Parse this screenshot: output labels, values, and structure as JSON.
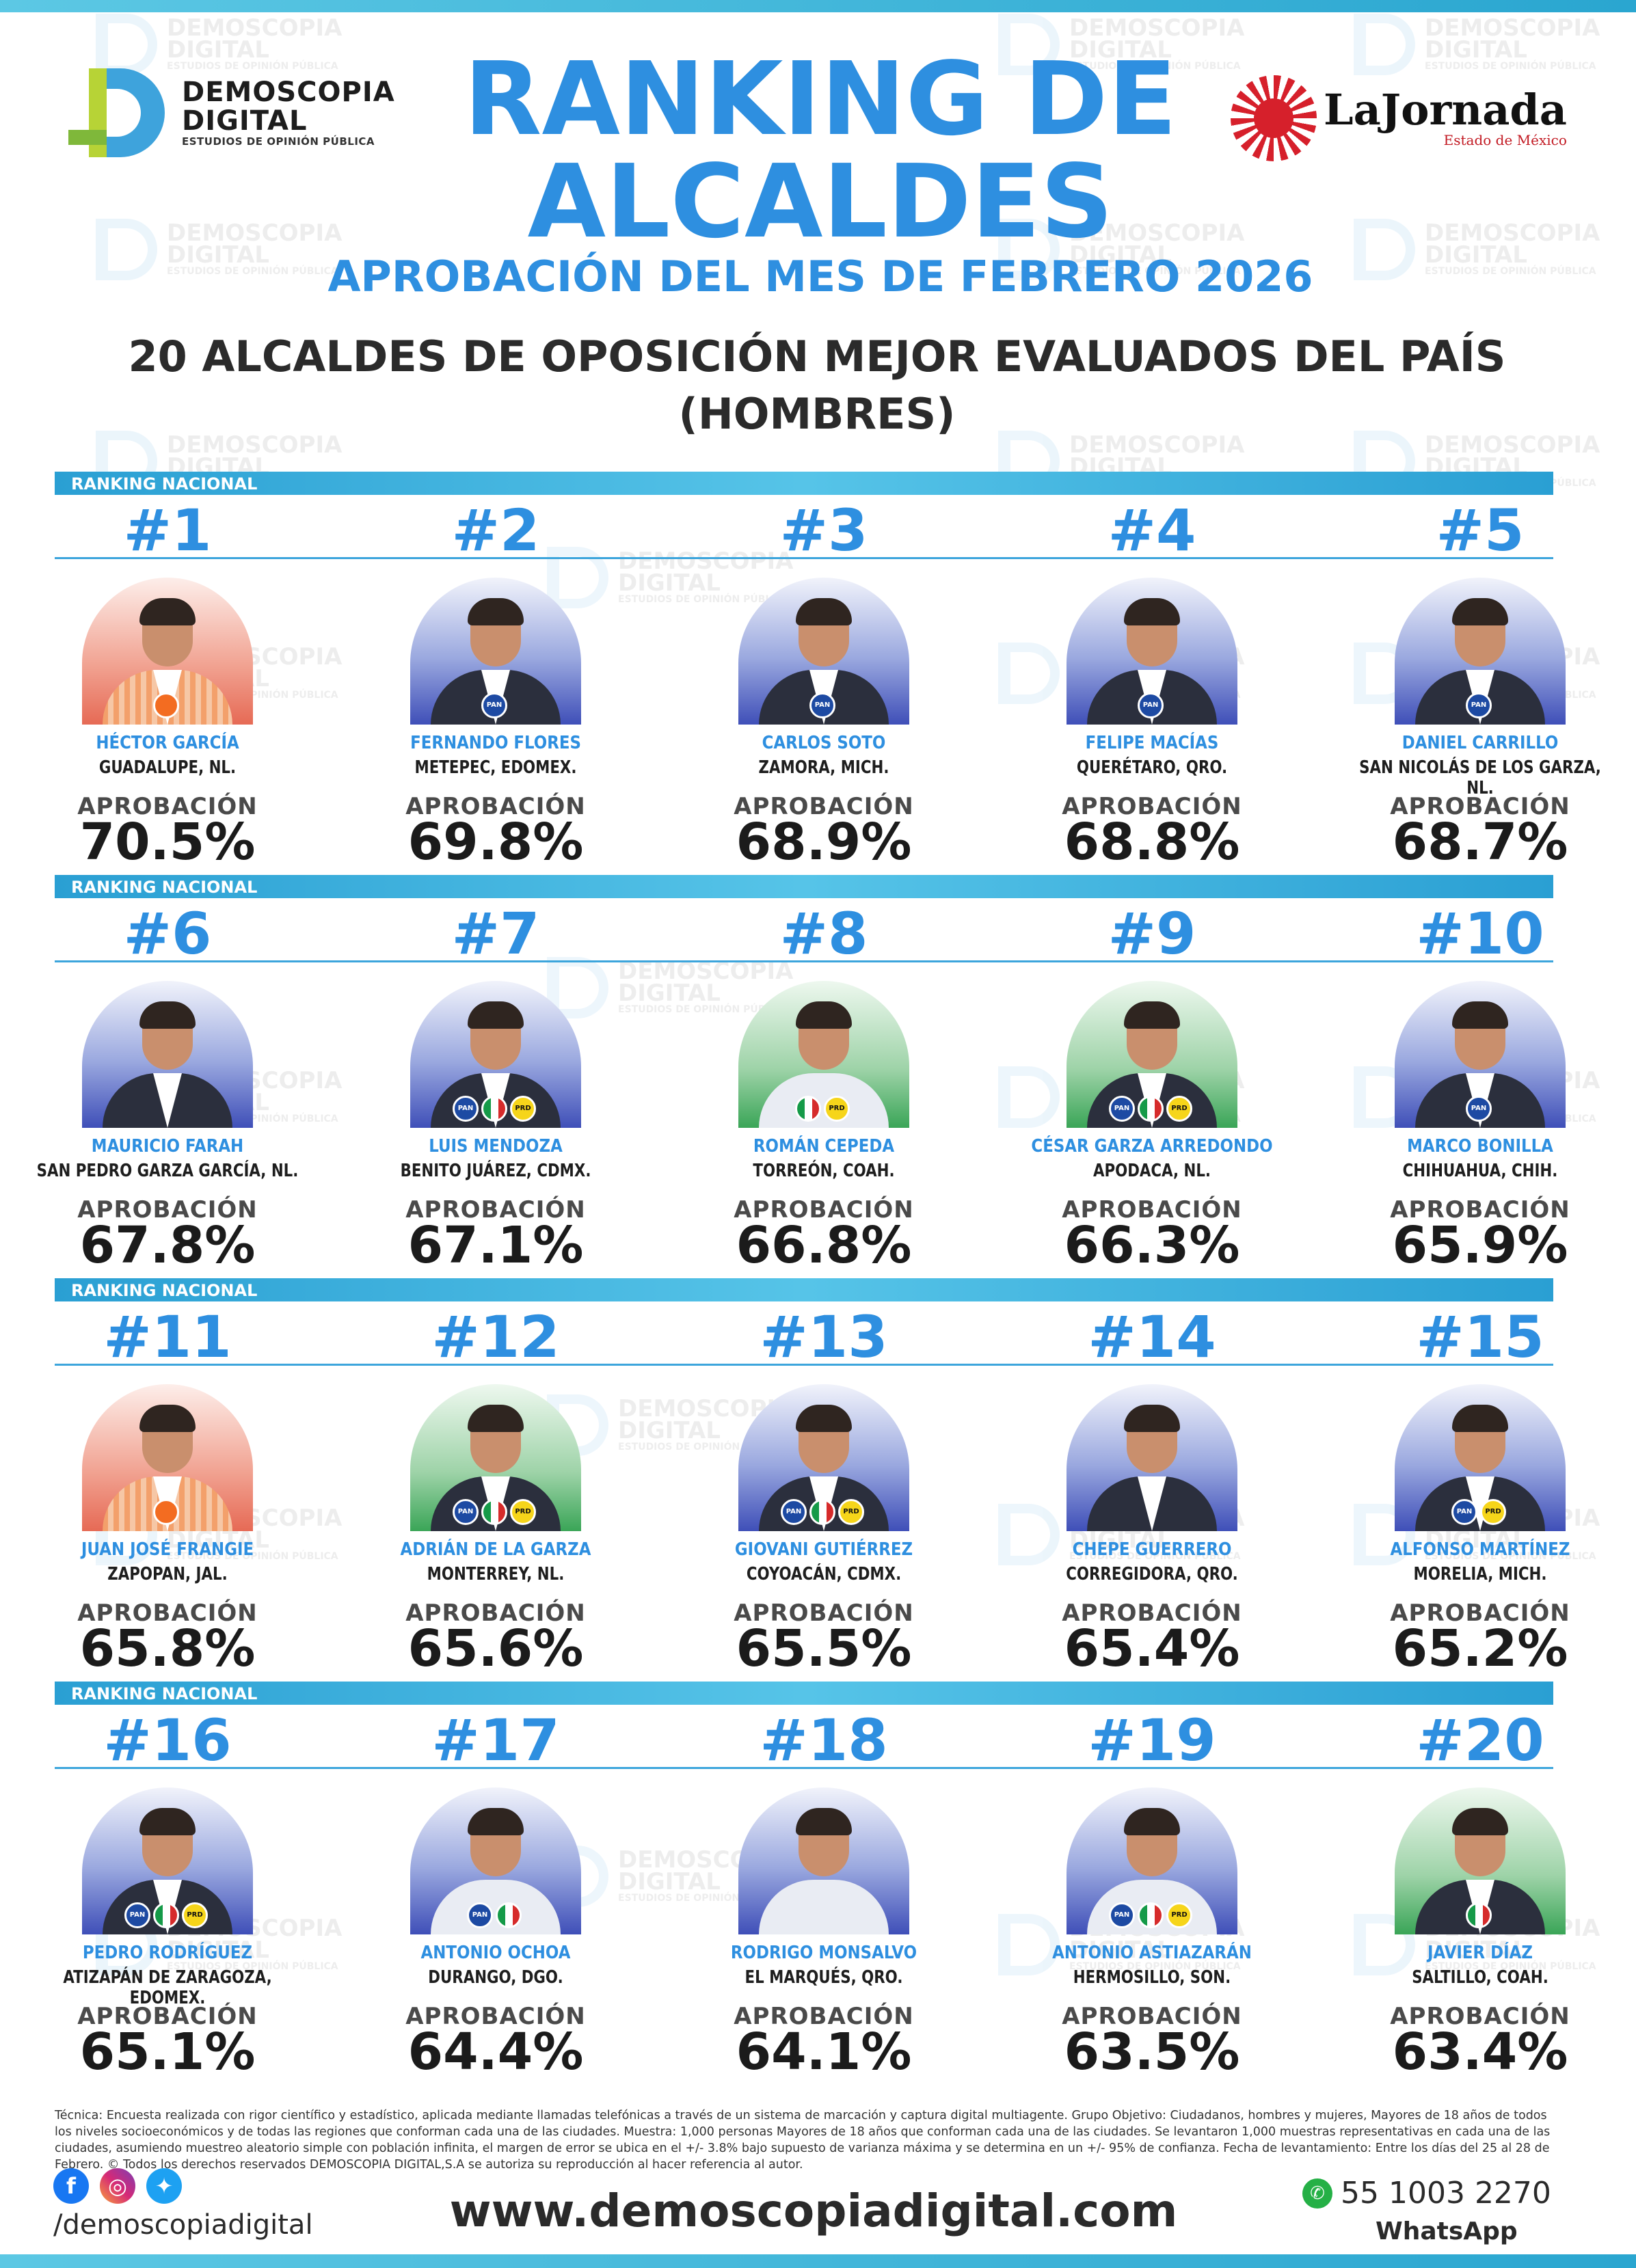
{
  "brand": {
    "name": "DEMOSCOPIA",
    "name2": "DIGITAL",
    "tagline": "ESTUDIOS DE OPINIÓN PÚBLICA"
  },
  "partner": {
    "name": "LaJornada",
    "sub": "Estado de México"
  },
  "header": {
    "title": "RANKING DE ALCALDES",
    "subtitle": "APROBACIÓN DEL MES DE FEBRERO 2026",
    "subtitle2_line1": "20 ALCALDES DE OPOSICIÓN MEJOR EVALUADOS DEL PAÍS",
    "subtitle2_line2": "(HOMBRES)"
  },
  "section_label": "RANKING NACIONAL",
  "approval_label": "APROBACIÓN",
  "mayors": [
    {
      "rank": "#1",
      "name": "HÉCTOR GARCÍA",
      "city": "GUADALUPE, NL.",
      "approval": "70.5%",
      "bg": "red",
      "parties": [
        "mc"
      ]
    },
    {
      "rank": "#2",
      "name": "FERNANDO FLORES",
      "city": "METEPEC, EDOMEX.",
      "approval": "69.8%",
      "bg": "blue",
      "parties": [
        "pan"
      ]
    },
    {
      "rank": "#3",
      "name": "CARLOS SOTO",
      "city": "ZAMORA, MICH.",
      "approval": "68.9%",
      "bg": "blue",
      "parties": [
        "pan"
      ]
    },
    {
      "rank": "#4",
      "name": "FELIPE MACÍAS",
      "city": "QUERÉTARO, QRO.",
      "approval": "68.8%",
      "bg": "blue",
      "parties": [
        "pan"
      ]
    },
    {
      "rank": "#5",
      "name": "DANIEL CARRILLO",
      "city": "SAN NICOLÁS DE LOS GARZA, NL.",
      "approval": "68.7%",
      "bg": "blue",
      "parties": [
        "pan"
      ]
    },
    {
      "rank": "#6",
      "name": "MAURICIO FARAH",
      "city": "SAN PEDRO GARZA GARCÍA, NL.",
      "approval": "67.8%",
      "bg": "blue",
      "parties": []
    },
    {
      "rank": "#7",
      "name": "LUIS MENDOZA",
      "city": "BENITO JUÁREZ, CDMX.",
      "approval": "67.1%",
      "bg": "blue",
      "parties": [
        "pan",
        "pri",
        "prd"
      ]
    },
    {
      "rank": "#8",
      "name": "ROMÁN CEPEDA",
      "city": "TORREÓN, COAH.",
      "approval": "66.8%",
      "bg": "green",
      "parties": [
        "pri",
        "prd"
      ]
    },
    {
      "rank": "#9",
      "name": "CÉSAR GARZA ARREDONDO",
      "city": "APODACA, NL.",
      "approval": "66.3%",
      "bg": "green",
      "parties": [
        "pan",
        "pri",
        "prd"
      ]
    },
    {
      "rank": "#10",
      "name": "MARCO BONILLA",
      "city": "CHIHUAHUA, CHIH.",
      "approval": "65.9%",
      "bg": "blue",
      "parties": [
        "pan"
      ]
    },
    {
      "rank": "#11",
      "name": "JUAN JOSÉ FRANGIE",
      "city": "ZAPOPAN, JAL.",
      "approval": "65.8%",
      "bg": "red",
      "parties": [
        "mc"
      ]
    },
    {
      "rank": "#12",
      "name": "ADRIÁN DE LA GARZA",
      "city": "MONTERREY, NL.",
      "approval": "65.6%",
      "bg": "green",
      "parties": [
        "pan",
        "pri",
        "prd"
      ]
    },
    {
      "rank": "#13",
      "name": "GIOVANI GUTIÉRREZ",
      "city": "COYOACÁN, CDMX.",
      "approval": "65.5%",
      "bg": "blue",
      "parties": [
        "pan",
        "pri",
        "prd"
      ]
    },
    {
      "rank": "#14",
      "name": "CHEPE GUERRERO",
      "city": "CORREGIDORA, QRO.",
      "approval": "65.4%",
      "bg": "blue",
      "parties": []
    },
    {
      "rank": "#15",
      "name": "ALFONSO MARTÍNEZ",
      "city": "MORELIA, MICH.",
      "approval": "65.2%",
      "bg": "blue",
      "parties": [
        "pan",
        "prd"
      ]
    },
    {
      "rank": "#16",
      "name": "PEDRO RODRÍGUEZ",
      "city": "ATIZAPÁN DE ZARAGOZA, EDOMEX.",
      "approval": "65.1%",
      "bg": "blue",
      "parties": [
        "pan",
        "pri",
        "prd"
      ]
    },
    {
      "rank": "#17",
      "name": "ANTONIO OCHOA",
      "city": "DURANGO, DGO.",
      "approval": "64.4%",
      "bg": "blue",
      "parties": [
        "pan",
        "pri"
      ]
    },
    {
      "rank": "#18",
      "name": "RODRIGO MONSALVO",
      "city": "EL MARQUÉS, QRO.",
      "approval": "64.1%",
      "bg": "blue",
      "parties": []
    },
    {
      "rank": "#19",
      "name": "ANTONIO ASTIAZARÁN",
      "city": "HERMOSILLO, SON.",
      "approval": "63.5%",
      "bg": "blue",
      "parties": [
        "pan",
        "pri",
        "prd"
      ]
    },
    {
      "rank": "#20",
      "name": "JAVIER DÍAZ",
      "city": "SALTILLO, COAH.",
      "approval": "63.4%",
      "bg": "green",
      "parties": [
        "pri"
      ]
    }
  ],
  "footer": {
    "tecnica": "Técnica: Encuesta realizada con rigor científico y estadístico, aplicada mediante llamadas telefónicas a través de un sistema de marcación y captura digital multiagente. Grupo Objetivo: Ciudadanos, hombres y mujeres, Mayores de 18 años de todos los niveles socioeconómicos y de todas las regiones que conforman cada una de las ciudades. Muestra: 1,000 personas Mayores de 18 años que conforman cada una de las ciudades. Se levantaron 1,000 muestras representativas en cada una de las ciudades, asumiendo muestreo aleatorio simple con población infinita, el margen de error se ubica en el +/- 3.8% bajo supuesto de varianza máxima y se determina en un +/- 95% de confianza. Fecha de levantamiento: Entre los días del 25 al 28 de Febrero. © Todos los derechos reservados DEMOSCOPIA DIGITAL,S.A se autoriza su reproducción al hacer referencia al autor.",
    "handle": "/demoscopiadigital",
    "website": "www.demoscopiadigital.com",
    "phone": "55 1003 2270",
    "whatsapp_label": "WhatsApp"
  }
}
